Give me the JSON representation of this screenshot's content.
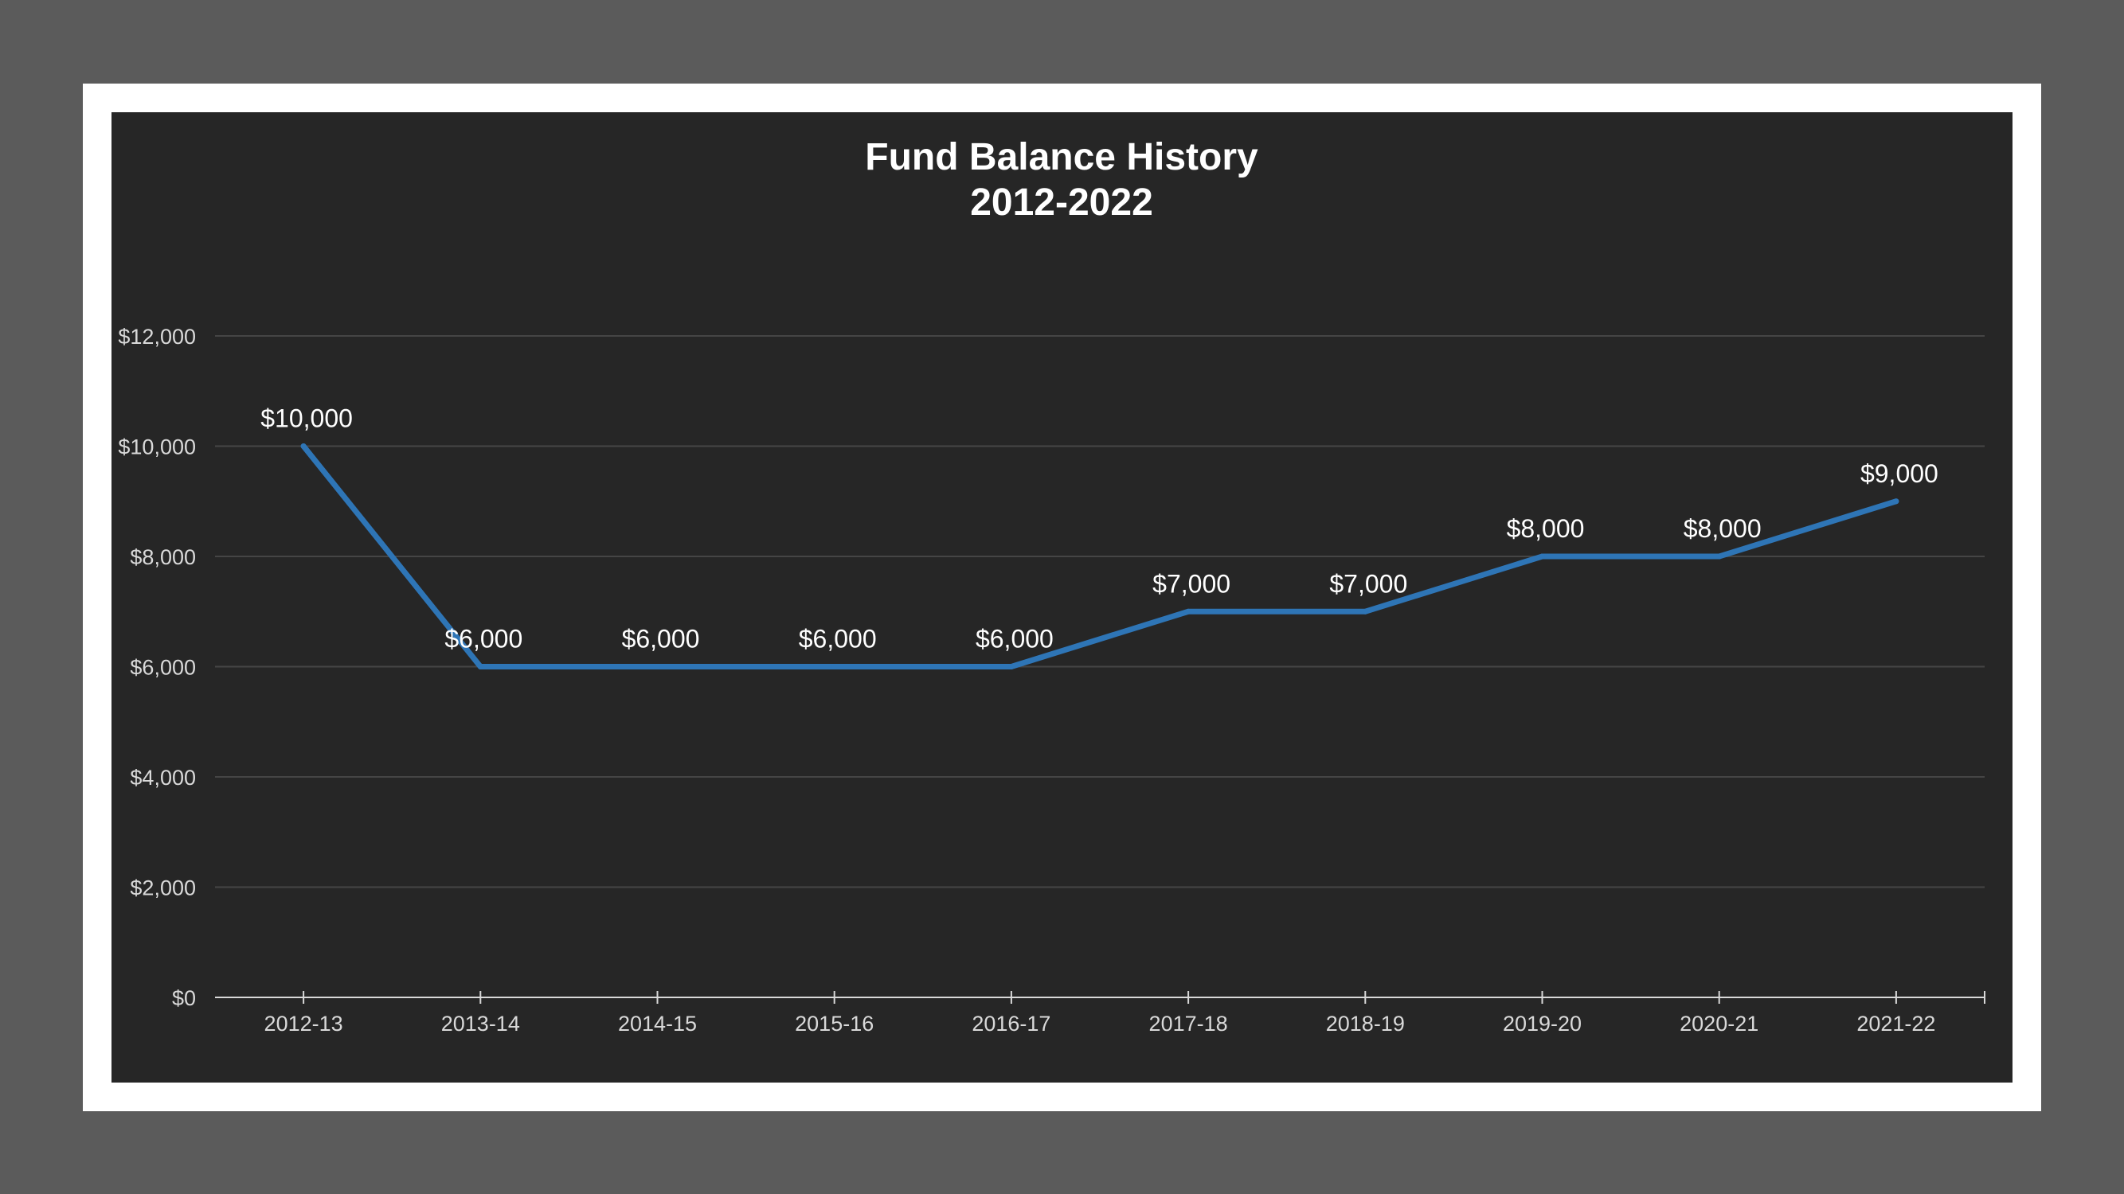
{
  "chart_data": {
    "type": "line",
    "title": [
      "Fund Balance History",
      "2012-2022"
    ],
    "xlabel": "",
    "ylabel": "",
    "categories": [
      "2012-13",
      "2013-14",
      "2014-15",
      "2015-16",
      "2016-17",
      "2017-18",
      "2018-19",
      "2019-20",
      "2020-21",
      "2021-22"
    ],
    "values": [
      10000,
      6000,
      6000,
      6000,
      6000,
      7000,
      7000,
      8000,
      8000,
      9000
    ],
    "data_labels": [
      "$10,000",
      "$6,000",
      "$6,000",
      "$6,000",
      "$6,000",
      "$7,000",
      "$7,000",
      "$8,000",
      "$8,000",
      "$9,000"
    ],
    "y_ticks": [
      0,
      2000,
      4000,
      6000,
      8000,
      10000,
      12000
    ],
    "y_tick_labels": [
      "$0",
      "$2,000",
      "$4,000",
      "$6,000",
      "$8,000",
      "$10,000",
      "$12,000"
    ],
    "ylim": [
      0,
      12000
    ],
    "grid": true,
    "legend": "none",
    "colors": {
      "line": "#2e75b6",
      "background": "#262626",
      "grid": "#454545",
      "text": "#ffffff",
      "tick_text": "#d9d9d9"
    }
  }
}
